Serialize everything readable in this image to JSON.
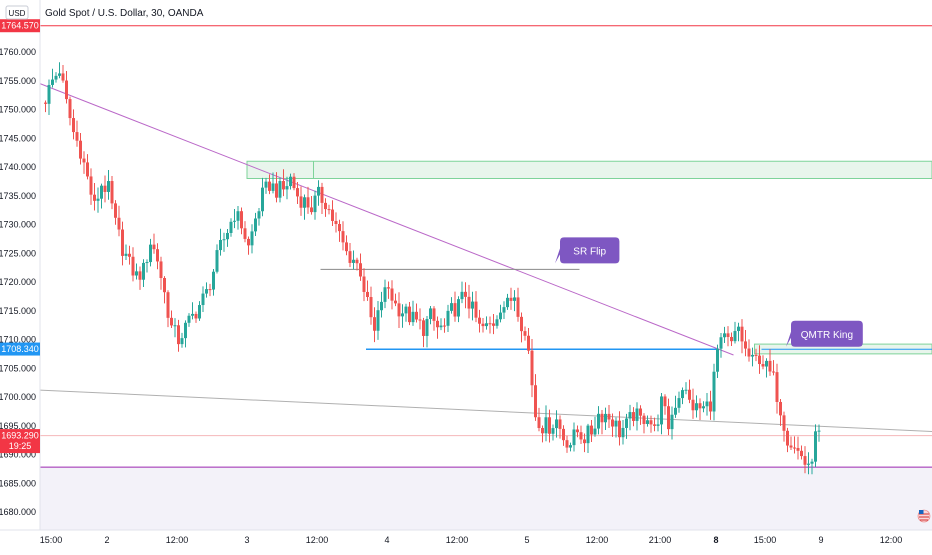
{
  "header": {
    "currency": "USD",
    "title": "Gold Spot / U.S. Dollar, 30, OANDA"
  },
  "colors": {
    "up": "#26a69a",
    "down": "#ef5350",
    "trendline": "#ba68c8",
    "support": "#2196f3",
    "resistance": "#f23645",
    "zone_fill": "#e8f5ec",
    "zone_stroke": "#7ed39a",
    "callout": "#7e57c2",
    "level_line": "#9c27b0",
    "current_price": "#f23645",
    "level_marker": "#2196f3"
  },
  "chart_data": {
    "type": "candlestick",
    "title": "Gold Spot / U.S. Dollar, 30, OANDA",
    "xlabel": "",
    "ylabel": "",
    "ylim": [
      1677.5,
      1768.5
    ],
    "grid": false,
    "y_ticks": [
      1680,
      1685,
      1690,
      1695,
      1700,
      1705,
      1710,
      1715,
      1720,
      1725,
      1730,
      1735,
      1740,
      1745,
      1750,
      1755,
      1760
    ],
    "y_tick_labels": [
      "1680.000",
      "1685.000",
      "1690.000",
      "1695.000",
      "1700.000",
      "1705.000",
      "1710.000",
      "1715.000",
      "1720.000",
      "1725.000",
      "1730.000",
      "1735.000",
      "1740.000",
      "1745.000",
      "1750.000",
      "1755.000",
      "1760.000"
    ],
    "time_labels": [
      {
        "label": "15:00",
        "bar": 2,
        "bold": false
      },
      {
        "label": "2",
        "bar": 18,
        "bold": false
      },
      {
        "label": "12:00",
        "bar": 38,
        "bold": false
      },
      {
        "label": "3",
        "bar": 58,
        "bold": false
      },
      {
        "label": "12:00",
        "bar": 78,
        "bold": false
      },
      {
        "label": "4",
        "bar": 98,
        "bold": false
      },
      {
        "label": "12:00",
        "bar": 118,
        "bold": false
      },
      {
        "label": "5",
        "bar": 138,
        "bold": false
      },
      {
        "label": "12:00",
        "bar": 158,
        "bold": false
      },
      {
        "label": "21:00",
        "bar": 176,
        "bold": false
      },
      {
        "label": "8",
        "bar": 192,
        "bold": true
      },
      {
        "label": "15:00",
        "bar": 206,
        "bold": false
      },
      {
        "label": "9",
        "bar": 222,
        "bold": false
      },
      {
        "label": "12:00",
        "bar": 242,
        "bold": false
      }
    ],
    "price_labels": [
      {
        "name": "resistance-level",
        "value": 1764.57,
        "label": "1764.570",
        "color": "#f23645"
      },
      {
        "name": "support-level",
        "value": 1708.34,
        "label": "1708.340",
        "color": "#2196f3"
      },
      {
        "name": "current-price",
        "value": 1693.29,
        "label": "1693.290",
        "sublabel": "19:25",
        "color": "#f23645"
      }
    ],
    "annotations": [
      {
        "name": "sr-flip",
        "text": "SR Flip",
        "bar": 148,
        "price": 1725.5
      },
      {
        "name": "qmtr-king",
        "text": "QMTR King",
        "bar": 214,
        "price": 1711.0
      }
    ],
    "zones": [
      {
        "name": "upper-zone",
        "bar_start": 58,
        "price_high": 1741.0,
        "price_low": 1738.0
      },
      {
        "name": "lower-zone",
        "bar_start": 203,
        "price_high": 1709.2,
        "price_low": 1707.5
      }
    ],
    "lines": [
      {
        "name": "main-trendline",
        "bar1": 0,
        "price1": 1754.5,
        "bar2": 192,
        "price2": 1708.5,
        "extend": 5,
        "color": "#ba68c8"
      },
      {
        "name": "grey-trendline",
        "bar1": 0,
        "price1": 1701.2,
        "bar2": 255,
        "price2": 1694.0,
        "extend": 0,
        "color": "#b0b0b0"
      },
      {
        "name": "grey-horizontal",
        "bar1": 79,
        "price1": 1722.2,
        "bar2": 153,
        "price2": 1722.2,
        "extend": 0,
        "color": "#888888"
      },
      {
        "name": "blue-support",
        "bar1": 92,
        "price1": 1708.3,
        "bar2": 192,
        "price2": 1708.3,
        "extend": 0,
        "color": "#2196f3"
      },
      {
        "name": "purple-bottom",
        "bar1": 0,
        "price1": 1687.8,
        "bar2": 255,
        "price2": 1687.8,
        "extend": 0,
        "color": "#9c27b0"
      }
    ],
    "bottom_band": {
      "price_high": 1687.8,
      "price_low": 1677.5
    },
    "keypoints": [
      [
        0,
        1752
      ],
      [
        2,
        1755
      ],
      [
        4,
        1757
      ],
      [
        6,
        1751
      ],
      [
        8,
        1746
      ],
      [
        10,
        1743
      ],
      [
        12,
        1738
      ],
      [
        14,
        1733
      ],
      [
        16,
        1737
      ],
      [
        18,
        1736
      ],
      [
        20,
        1730
      ],
      [
        22,
        1726
      ],
      [
        24,
        1723
      ],
      [
        26,
        1721
      ],
      [
        28,
        1722
      ],
      [
        30,
        1727
      ],
      [
        32,
        1724
      ],
      [
        34,
        1718
      ],
      [
        36,
        1712
      ],
      [
        38,
        1710
      ],
      [
        40,
        1712
      ],
      [
        42,
        1714
      ],
      [
        44,
        1716
      ],
      [
        46,
        1718
      ],
      [
        48,
        1722
      ],
      [
        50,
        1726
      ],
      [
        52,
        1729
      ],
      [
        54,
        1732
      ],
      [
        56,
        1730
      ],
      [
        58,
        1726
      ],
      [
        60,
        1731
      ],
      [
        62,
        1735
      ],
      [
        64,
        1737
      ],
      [
        66,
        1736
      ],
      [
        68,
        1736
      ],
      [
        70,
        1738
      ],
      [
        72,
        1735
      ],
      [
        74,
        1734
      ],
      [
        76,
        1733
      ],
      [
        78,
        1735
      ],
      [
        80,
        1734
      ],
      [
        82,
        1731
      ],
      [
        84,
        1728
      ],
      [
        86,
        1725
      ],
      [
        88,
        1724
      ],
      [
        90,
        1722
      ],
      [
        92,
        1716
      ],
      [
        94,
        1711
      ],
      [
        96,
        1717
      ],
      [
        98,
        1719
      ],
      [
        100,
        1716
      ],
      [
        102,
        1715
      ],
      [
        104,
        1714
      ],
      [
        106,
        1713
      ],
      [
        108,
        1712
      ],
      [
        110,
        1714
      ],
      [
        112,
        1712
      ],
      [
        114,
        1712
      ],
      [
        116,
        1715
      ],
      [
        118,
        1716
      ],
      [
        120,
        1718
      ],
      [
        122,
        1715
      ],
      [
        124,
        1712
      ],
      [
        126,
        1712
      ],
      [
        128,
        1713
      ],
      [
        130,
        1716
      ],
      [
        132,
        1716
      ],
      [
        134,
        1718
      ],
      [
        136,
        1713
      ],
      [
        138,
        1708
      ],
      [
        140,
        1697
      ],
      [
        142,
        1695
      ],
      [
        144,
        1695
      ],
      [
        146,
        1696
      ],
      [
        148,
        1693
      ],
      [
        150,
        1692
      ],
      [
        152,
        1694
      ],
      [
        154,
        1693
      ],
      [
        156,
        1694
      ],
      [
        158,
        1697
      ],
      [
        160,
        1697
      ],
      [
        162,
        1696
      ],
      [
        164,
        1694
      ],
      [
        166,
        1695
      ],
      [
        168,
        1697
      ],
      [
        170,
        1696
      ],
      [
        172,
        1697
      ],
      [
        174,
        1694
      ],
      [
        176,
        1699
      ],
      [
        178,
        1695
      ],
      [
        180,
        1699
      ],
      [
        182,
        1702
      ],
      [
        184,
        1699
      ],
      [
        186,
        1698
      ],
      [
        188,
        1698
      ],
      [
        190,
        1699
      ],
      [
        192,
        1708
      ],
      [
        194,
        1710
      ],
      [
        196,
        1709
      ],
      [
        198,
        1712
      ],
      [
        200,
        1708
      ],
      [
        202,
        1706
      ],
      [
        204,
        1707
      ],
      [
        206,
        1705
      ],
      [
        208,
        1703
      ],
      [
        210,
        1698
      ],
      [
        212,
        1693
      ],
      [
        214,
        1691
      ],
      [
        216,
        1690
      ],
      [
        218,
        1687
      ],
      [
        220,
        1693
      ],
      [
        221,
        1693.3
      ]
    ]
  },
  "footer": {
    "flag_icon": "us-flag-icon"
  }
}
